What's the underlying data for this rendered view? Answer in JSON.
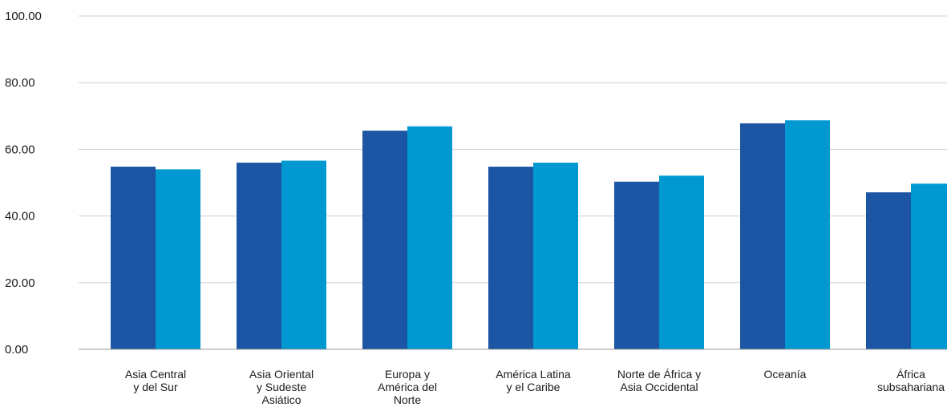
{
  "chart_data": {
    "type": "bar",
    "title": "",
    "xlabel": "",
    "ylabel": "",
    "ylim": [
      0,
      100
    ],
    "yticks": [
      "100.00",
      "80.00",
      "60.00",
      "40.00",
      "20.00",
      "0.00"
    ],
    "yticks_values": [
      100,
      80,
      60,
      40,
      20,
      0
    ],
    "grid": true,
    "legend": "none",
    "categories": [
      [
        "Asia Central",
        "y del Sur"
      ],
      [
        "Asia Oriental",
        "y Sudeste",
        "Asiático"
      ],
      [
        "Europa y",
        "América del",
        "Norte"
      ],
      [
        "América Latina",
        "y el Caribe"
      ],
      [
        "Norte de África y",
        "Asia Occidental"
      ],
      [
        "Oceanía"
      ],
      [
        "África",
        "subsahariana"
      ]
    ],
    "series": [
      {
        "color": "#1b55a4",
        "values": [
          54.8,
          56.0,
          65.6,
          54.8,
          50.3,
          67.8,
          47.1
        ]
      },
      {
        "color": "#0098d1",
        "values": [
          54.0,
          56.6,
          66.9,
          56.0,
          52.1,
          68.7,
          49.7
        ]
      }
    ]
  }
}
